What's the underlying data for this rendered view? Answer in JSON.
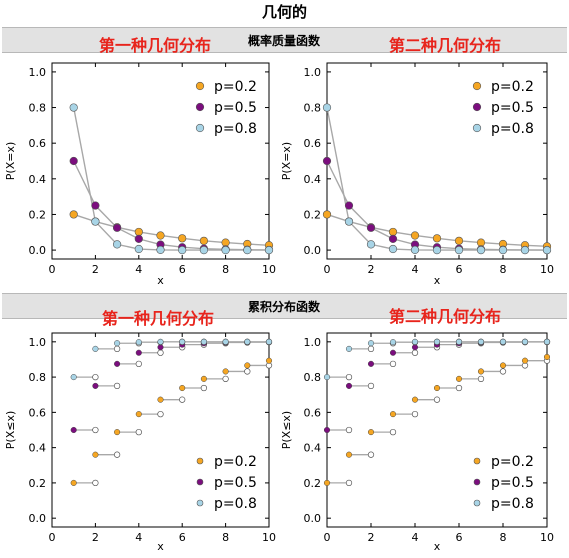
{
  "page": {
    "title": "几何的",
    "sections": [
      {
        "label": "概率质量函数"
      },
      {
        "label": "累积分布函数"
      }
    ],
    "panel_titles": [
      "第一种几何分布",
      "第二种几何分布",
      "第一种几何分布",
      "第二种几何分布"
    ]
  },
  "colors": {
    "p02": "#f5a623",
    "p05": "#7b0e7e",
    "p08": "#a8d4e6",
    "line": "#a8a8a8",
    "title_red": "#e8241c"
  },
  "chart_data": [
    {
      "type": "scatter",
      "kind": "pmf",
      "title": "第一种几何分布",
      "xlabel": "x",
      "ylabel": "P(X=x)",
      "xlim": [
        0,
        10
      ],
      "ylim": [
        -0.05,
        1.05
      ],
      "xticks": [
        "0",
        "2",
        "4",
        "6",
        "8",
        "10"
      ],
      "yticks": [
        "0.0",
        "0.2",
        "0.4",
        "0.6",
        "0.8",
        "1.0"
      ],
      "legend": "top-right",
      "series": [
        {
          "name": "p=0.2",
          "color": "#f5a623",
          "x": [
            1,
            2,
            3,
            4,
            5,
            6,
            7,
            8,
            9,
            10
          ],
          "y": [
            0.2,
            0.16,
            0.128,
            0.102,
            0.082,
            0.066,
            0.052,
            0.042,
            0.034,
            0.027
          ]
        },
        {
          "name": "p=0.5",
          "color": "#7b0e7e",
          "x": [
            1,
            2,
            3,
            4,
            5,
            6,
            7,
            8,
            9,
            10
          ],
          "y": [
            0.5,
            0.25,
            0.125,
            0.063,
            0.031,
            0.016,
            0.008,
            0.004,
            0.002,
            0.001
          ]
        },
        {
          "name": "p=0.8",
          "color": "#a8d4e6",
          "x": [
            1,
            2,
            3,
            4,
            5,
            6,
            7,
            8,
            9,
            10
          ],
          "y": [
            0.8,
            0.16,
            0.032,
            0.006,
            0.001,
            0.0,
            0.0,
            0.0,
            0.0,
            0.0
          ]
        }
      ]
    },
    {
      "type": "scatter",
      "kind": "pmf",
      "title": "第二种几何分布",
      "xlabel": "x",
      "ylabel": "P(X=x)",
      "xlim": [
        0,
        10
      ],
      "ylim": [
        -0.05,
        1.05
      ],
      "xticks": [
        "0",
        "2",
        "4",
        "6",
        "8",
        "10"
      ],
      "yticks": [
        "0.0",
        "0.2",
        "0.4",
        "0.6",
        "0.8",
        "1.0"
      ],
      "legend": "top-right",
      "series": [
        {
          "name": "p=0.2",
          "color": "#f5a623",
          "x": [
            0,
            1,
            2,
            3,
            4,
            5,
            6,
            7,
            8,
            9,
            10
          ],
          "y": [
            0.2,
            0.16,
            0.128,
            0.102,
            0.082,
            0.066,
            0.052,
            0.042,
            0.034,
            0.027,
            0.021
          ]
        },
        {
          "name": "p=0.5",
          "color": "#7b0e7e",
          "x": [
            0,
            1,
            2,
            3,
            4,
            5,
            6,
            7,
            8,
            9,
            10
          ],
          "y": [
            0.5,
            0.25,
            0.125,
            0.063,
            0.031,
            0.016,
            0.008,
            0.004,
            0.002,
            0.001,
            0.0
          ]
        },
        {
          "name": "p=0.8",
          "color": "#a8d4e6",
          "x": [
            0,
            1,
            2,
            3,
            4,
            5,
            6,
            7,
            8,
            9,
            10
          ],
          "y": [
            0.8,
            0.16,
            0.032,
            0.006,
            0.001,
            0.0,
            0.0,
            0.0,
            0.0,
            0.0,
            0.0
          ]
        }
      ]
    },
    {
      "type": "scatter",
      "kind": "cdf",
      "title": "第一种几何分布",
      "xlabel": "x",
      "ylabel": "P(X≤x)",
      "xlim": [
        0,
        10
      ],
      "ylim": [
        -0.05,
        1.05
      ],
      "xticks": [
        "0",
        "2",
        "4",
        "6",
        "8",
        "10"
      ],
      "yticks": [
        "0.0",
        "0.2",
        "0.4",
        "0.6",
        "0.8",
        "1.0"
      ],
      "legend": "bottom-right",
      "series": [
        {
          "name": "p=0.2",
          "color": "#f5a623",
          "x": [
            1,
            2,
            3,
            4,
            5,
            6,
            7,
            8,
            9,
            10
          ],
          "y": [
            0.2,
            0.36,
            0.488,
            0.59,
            0.672,
            0.738,
            0.79,
            0.832,
            0.866,
            0.893
          ]
        },
        {
          "name": "p=0.5",
          "color": "#7b0e7e",
          "x": [
            1,
            2,
            3,
            4,
            5,
            6,
            7,
            8,
            9,
            10
          ],
          "y": [
            0.5,
            0.75,
            0.875,
            0.938,
            0.969,
            0.984,
            0.992,
            0.996,
            0.998,
            0.999
          ]
        },
        {
          "name": "p=0.8",
          "color": "#a8d4e6",
          "x": [
            1,
            2,
            3,
            4,
            5,
            6,
            7,
            8,
            9,
            10
          ],
          "y": [
            0.8,
            0.96,
            0.992,
            0.998,
            1.0,
            1.0,
            1.0,
            1.0,
            1.0,
            1.0
          ]
        }
      ]
    },
    {
      "type": "scatter",
      "kind": "cdf",
      "title": "第二种几何分布",
      "xlabel": "x",
      "ylabel": "P(X≤x)",
      "xlim": [
        0,
        10
      ],
      "ylim": [
        -0.05,
        1.05
      ],
      "xticks": [
        "0",
        "2",
        "4",
        "6",
        "8",
        "10"
      ],
      "yticks": [
        "0.0",
        "0.2",
        "0.4",
        "0.6",
        "0.8",
        "1.0"
      ],
      "legend": "bottom-right",
      "series": [
        {
          "name": "p=0.2",
          "color": "#f5a623",
          "x": [
            0,
            1,
            2,
            3,
            4,
            5,
            6,
            7,
            8,
            9,
            10
          ],
          "y": [
            0.2,
            0.36,
            0.488,
            0.59,
            0.672,
            0.738,
            0.79,
            0.832,
            0.866,
            0.893,
            0.914
          ]
        },
        {
          "name": "p=0.5",
          "color": "#7b0e7e",
          "x": [
            0,
            1,
            2,
            3,
            4,
            5,
            6,
            7,
            8,
            9,
            10
          ],
          "y": [
            0.5,
            0.75,
            0.875,
            0.938,
            0.969,
            0.984,
            0.992,
            0.996,
            0.998,
            0.999,
            1.0
          ]
        },
        {
          "name": "p=0.8",
          "color": "#a8d4e6",
          "x": [
            0,
            1,
            2,
            3,
            4,
            5,
            6,
            7,
            8,
            9,
            10
          ],
          "y": [
            0.8,
            0.96,
            0.992,
            0.998,
            1.0,
            1.0,
            1.0,
            1.0,
            1.0,
            1.0,
            1.0
          ]
        }
      ]
    }
  ]
}
